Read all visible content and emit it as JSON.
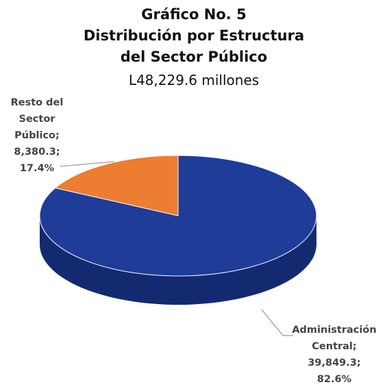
{
  "chart_data": {
    "type": "pie",
    "title": "Gráfico No. 5",
    "subtitle": "Distribución por Estructura del Sector Público",
    "total_label": "L48,229.6 millones",
    "categories": [
      "Administración Central",
      "Resto del Sector Público"
    ],
    "values": [
      39849.3,
      8380.3
    ],
    "value_labels": [
      "39,849.3",
      "8,380.3"
    ],
    "percent_labels": [
      "82.6%",
      "17.4%"
    ],
    "label_separator": ";",
    "colors": [
      "#1f3c99",
      "#ed7d31"
    ],
    "side_colors": [
      "#142a70",
      "#b85d20"
    ]
  }
}
